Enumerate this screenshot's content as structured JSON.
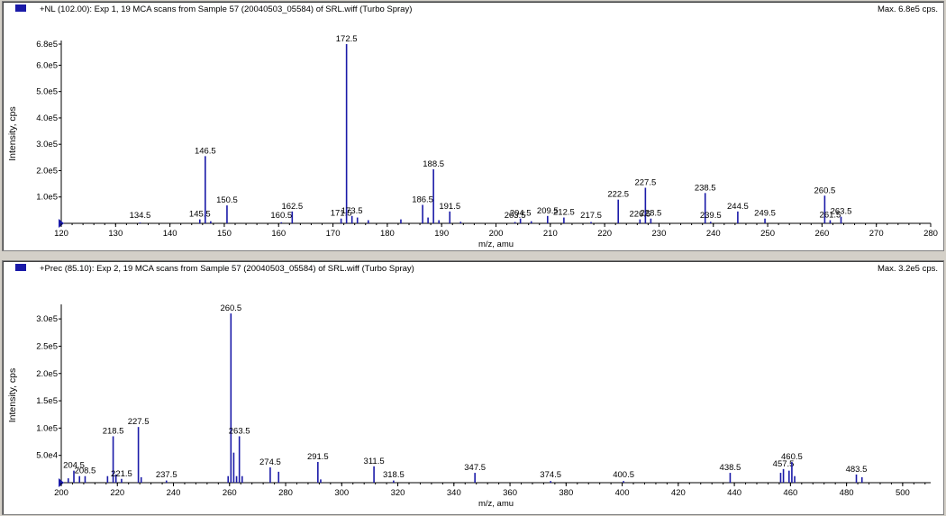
{
  "panes": [
    {
      "title": "+NL (102.00): Exp 1, 19 MCA scans from Sample 57 (20040503_05584) of SRL.wiff (Turbo Spray)",
      "max_label": "Max. 6.8e5 cps.",
      "icon": "spectrum-pane-icon"
    },
    {
      "title": "+Prec (85.10): Exp 2, 19 MCA scans from Sample 57 (20040503_05584) of SRL.wiff (Turbo Spray)",
      "max_label": "Max. 3.2e5 cps.",
      "icon": "spectrum-pane-icon"
    }
  ],
  "colors": {
    "trace": "#1a1aa8",
    "axis": "#000000",
    "background": "#ffffff"
  },
  "chart_data": [
    {
      "type": "bar",
      "xlabel": "m/z, amu",
      "ylabel": "Intensity, cps",
      "xlim": [
        120,
        280
      ],
      "ylim": [
        0,
        680000
      ],
      "xticks": [
        120,
        130,
        140,
        150,
        160,
        170,
        180,
        190,
        200,
        210,
        220,
        230,
        240,
        250,
        260,
        270,
        280
      ],
      "yticks": [
        {
          "value": 100000,
          "label": "1.0e5"
        },
        {
          "value": 200000,
          "label": "2.0e5"
        },
        {
          "value": 300000,
          "label": "3.0e5"
        },
        {
          "value": 400000,
          "label": "4.0e5"
        },
        {
          "value": 500000,
          "label": "5.0e5"
        },
        {
          "value": 600000,
          "label": "6.0e5"
        },
        {
          "value": 680000,
          "label": "6.8e5"
        }
      ],
      "peaks": [
        {
          "x": 134.5,
          "y": 3000,
          "label": "134.5"
        },
        {
          "x": 145.5,
          "y": 15000,
          "label": "145.5"
        },
        {
          "x": 146.5,
          "y": 255000,
          "label": "146.5"
        },
        {
          "x": 147.5,
          "y": 8000
        },
        {
          "x": 150.5,
          "y": 68000,
          "label": "150.5"
        },
        {
          "x": 160.5,
          "y": 4000,
          "label": "160.5"
        },
        {
          "x": 162.5,
          "y": 45000,
          "label": "162.5"
        },
        {
          "x": 171.5,
          "y": 18000,
          "label": "171.5"
        },
        {
          "x": 172.5,
          "y": 680000,
          "label": "172.5"
        },
        {
          "x": 173.5,
          "y": 28000,
          "label": "173.5"
        },
        {
          "x": 174.5,
          "y": 22000
        },
        {
          "x": 176.5,
          "y": 12000
        },
        {
          "x": 182.5,
          "y": 15000
        },
        {
          "x": 186.5,
          "y": 70000,
          "label": "186.5"
        },
        {
          "x": 187.5,
          "y": 22000
        },
        {
          "x": 188.5,
          "y": 205000,
          "label": "188.5"
        },
        {
          "x": 189.5,
          "y": 12000
        },
        {
          "x": 191.5,
          "y": 45000,
          "label": "191.5"
        },
        {
          "x": 193.5,
          "y": 6000
        },
        {
          "x": 203.5,
          "y": 5000,
          "label": "203.5"
        },
        {
          "x": 204.5,
          "y": 18000,
          "label": "204.5"
        },
        {
          "x": 206.5,
          "y": 8000
        },
        {
          "x": 209.5,
          "y": 28000,
          "label": "209.5"
        },
        {
          "x": 212.5,
          "y": 22000,
          "label": "212.5"
        },
        {
          "x": 217.5,
          "y": 5000,
          "label": "217.5"
        },
        {
          "x": 222.5,
          "y": 90000,
          "label": "222.5"
        },
        {
          "x": 226.5,
          "y": 15000,
          "label": "226.5"
        },
        {
          "x": 227.5,
          "y": 135000,
          "label": "227.5"
        },
        {
          "x": 228.5,
          "y": 18000,
          "label": "228.5"
        },
        {
          "x": 238.5,
          "y": 115000,
          "label": "238.5"
        },
        {
          "x": 239.5,
          "y": 6000,
          "label": "239.5"
        },
        {
          "x": 244.5,
          "y": 45000,
          "label": "244.5"
        },
        {
          "x": 249.5,
          "y": 18000,
          "label": "249.5"
        },
        {
          "x": 260.5,
          "y": 105000,
          "label": "260.5"
        },
        {
          "x": 261.5,
          "y": 12000,
          "label": "261.5"
        },
        {
          "x": 263.5,
          "y": 25000,
          "label": "263.5"
        }
      ]
    },
    {
      "type": "bar",
      "xlabel": "m/z, amu",
      "ylabel": "Intensity, cps",
      "xlim": [
        200,
        510
      ],
      "ylim": [
        0,
        320000
      ],
      "xticks": [
        200,
        220,
        240,
        260,
        280,
        300,
        320,
        340,
        360,
        380,
        400,
        420,
        440,
        460,
        480,
        500
      ],
      "yticks": [
        {
          "value": 50000,
          "label": "5.0e4"
        },
        {
          "value": 100000,
          "label": "1.0e5"
        },
        {
          "value": 150000,
          "label": "1.5e5"
        },
        {
          "value": 200000,
          "label": "2.0e5"
        },
        {
          "value": 250000,
          "label": "2.5e5"
        },
        {
          "value": 300000,
          "label": "3.0e5"
        }
      ],
      "peaks": [
        {
          "x": 202.5,
          "y": 8000
        },
        {
          "x": 204.5,
          "y": 22000,
          "label": "204.5"
        },
        {
          "x": 206.5,
          "y": 12000
        },
        {
          "x": 208.5,
          "y": 12000,
          "label": "208.5"
        },
        {
          "x": 216.5,
          "y": 12000
        },
        {
          "x": 218.5,
          "y": 85000,
          "label": "218.5"
        },
        {
          "x": 219.5,
          "y": 15000
        },
        {
          "x": 221.5,
          "y": 7000,
          "label": "221.5"
        },
        {
          "x": 227.5,
          "y": 102000,
          "label": "227.5"
        },
        {
          "x": 228.5,
          "y": 10000
        },
        {
          "x": 237.5,
          "y": 4000,
          "label": "237.5"
        },
        {
          "x": 259.5,
          "y": 12000
        },
        {
          "x": 260.5,
          "y": 310000,
          "label": "260.5"
        },
        {
          "x": 261.5,
          "y": 55000
        },
        {
          "x": 262.5,
          "y": 12000
        },
        {
          "x": 263.5,
          "y": 85000,
          "label": "263.5"
        },
        {
          "x": 264.5,
          "y": 12000
        },
        {
          "x": 274.5,
          "y": 28000,
          "label": "274.5"
        },
        {
          "x": 277.5,
          "y": 20000
        },
        {
          "x": 291.5,
          "y": 38000,
          "label": "291.5"
        },
        {
          "x": 292.5,
          "y": 6000
        },
        {
          "x": 311.5,
          "y": 30000,
          "label": "311.5"
        },
        {
          "x": 318.5,
          "y": 4000,
          "label": "318.5"
        },
        {
          "x": 347.5,
          "y": 18000,
          "label": "347.5"
        },
        {
          "x": 374.5,
          "y": 3000,
          "label": "374.5"
        },
        {
          "x": 400.5,
          "y": 3000,
          "label": "400.5"
        },
        {
          "x": 438.5,
          "y": 18000,
          "label": "438.5"
        },
        {
          "x": 456.5,
          "y": 18000
        },
        {
          "x": 457.5,
          "y": 25000,
          "label": "457.5"
        },
        {
          "x": 459.5,
          "y": 22000
        },
        {
          "x": 460.5,
          "y": 38000,
          "label": "460.5"
        },
        {
          "x": 461.5,
          "y": 12000
        },
        {
          "x": 483.5,
          "y": 15000,
          "label": "483.5"
        },
        {
          "x": 485.5,
          "y": 10000
        }
      ]
    }
  ]
}
